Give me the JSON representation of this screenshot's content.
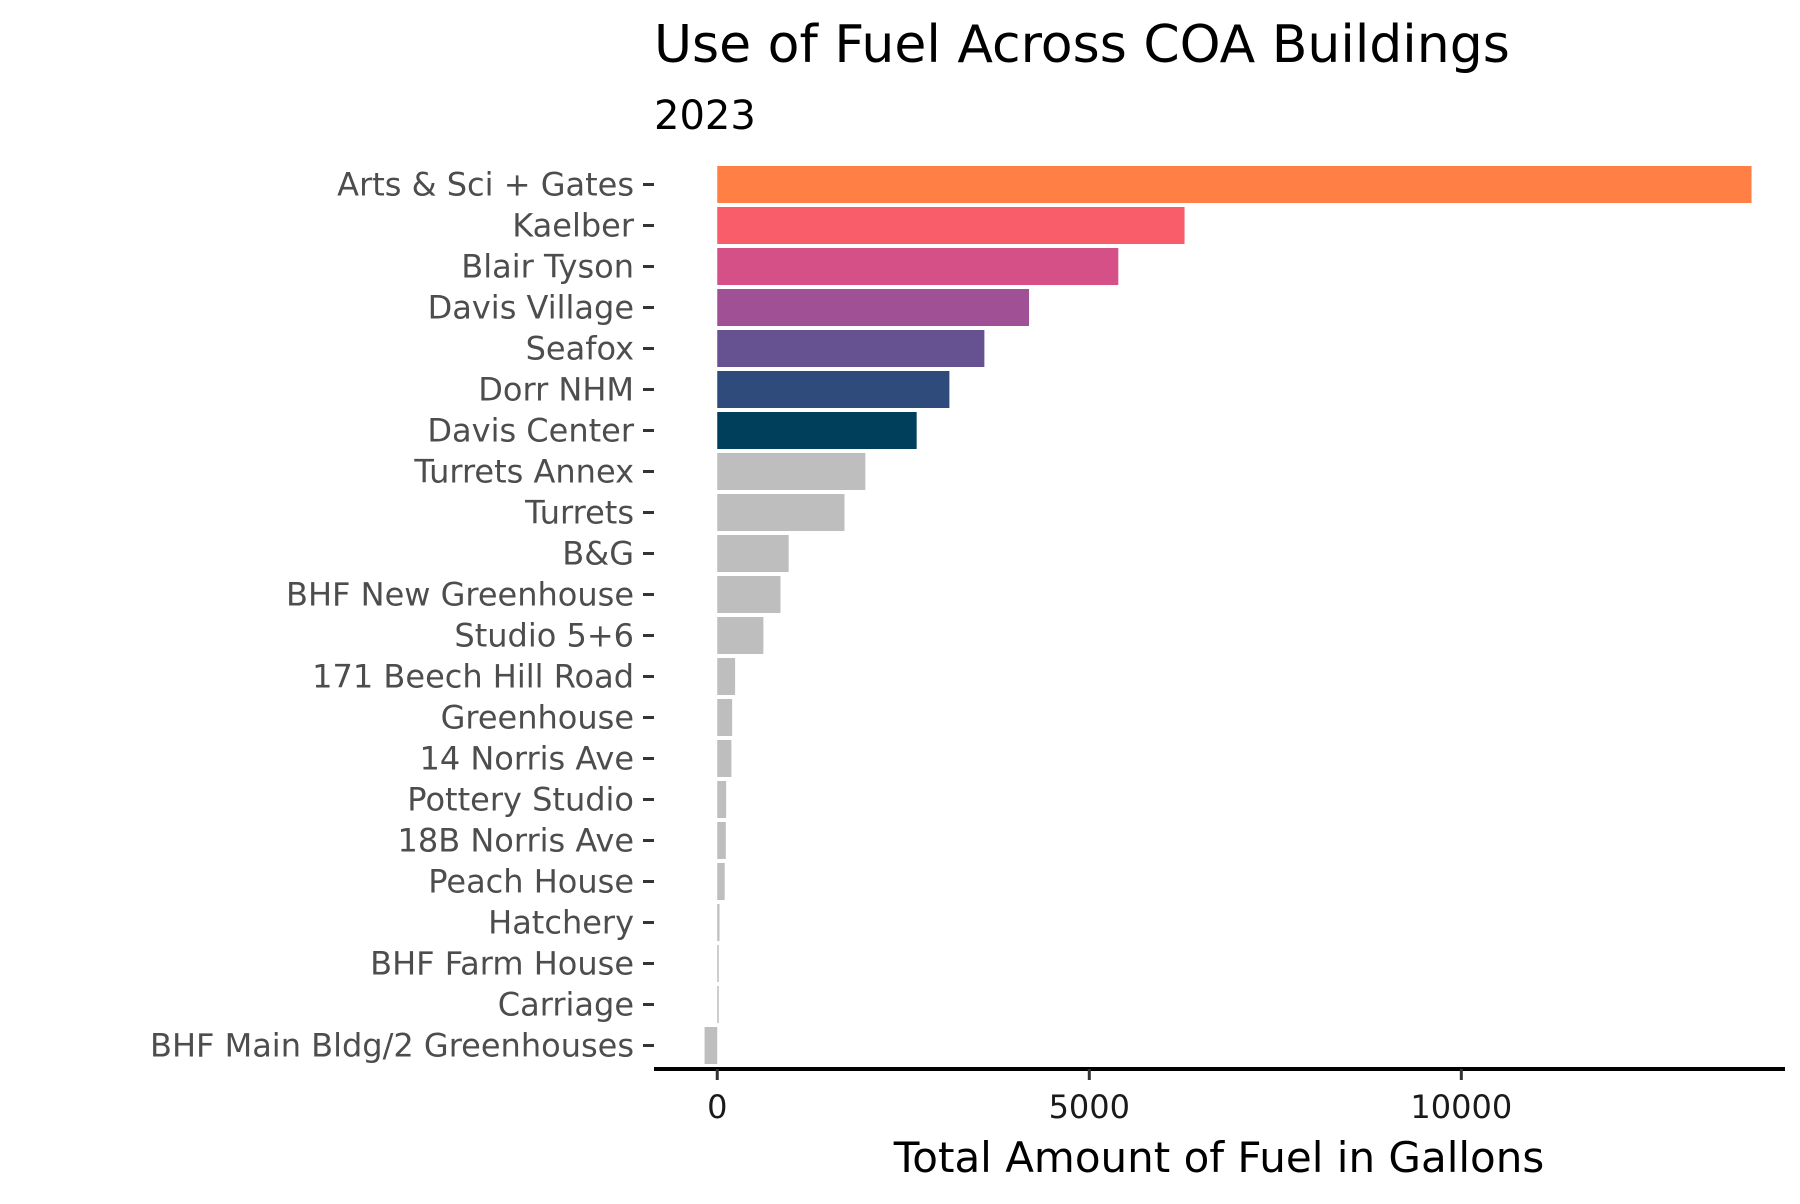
{
  "chart_data": {
    "type": "bar",
    "orientation": "horizontal",
    "title": "Use of Fuel Across COA Buildings",
    "subtitle": "2023",
    "xlabel": "Total Amount of Fuel in Gallons",
    "ylabel": "",
    "xlim": [
      -850,
      14350
    ],
    "x_ticks": [
      0,
      5000,
      10000
    ],
    "x_tick_labels": [
      "0",
      "5000",
      "10000"
    ],
    "grid": false,
    "legend": "none",
    "categories": [
      "Arts & Sci + Gates",
      "Kaelber",
      "Blair Tyson",
      "Davis Village",
      "Seafox",
      "Dorr NHM",
      "Davis Center",
      "Turrets Annex",
      "Turrets",
      "B&G",
      "BHF New Greenhouse",
      "Studio 5+6",
      "171 Beech Hill Road",
      "Greenhouse",
      "14 Norris Ave",
      "Pottery Studio",
      "18B Norris Ave",
      "Peach House",
      "Hatchery",
      "BHF Farm House",
      "Carriage",
      "BHF Main Bldg/2 Greenhouses"
    ],
    "values": [
      13900,
      6280,
      5390,
      4190,
      3590,
      3120,
      2680,
      1990,
      1710,
      960,
      850,
      620,
      240,
      200,
      190,
      120,
      115,
      100,
      30,
      15,
      10,
      -170
    ],
    "colors": [
      "#ff7f45",
      "#f95d6a",
      "#d45087",
      "#a05195",
      "#665191",
      "#2f4b7c",
      "#003f5c",
      "#bebebe",
      "#bebebe",
      "#bebebe",
      "#bebebe",
      "#bebebe",
      "#bebebe",
      "#bebebe",
      "#bebebe",
      "#bebebe",
      "#bebebe",
      "#bebebe",
      "#bebebe",
      "#bebebe",
      "#bebebe",
      "#bebebe"
    ]
  }
}
